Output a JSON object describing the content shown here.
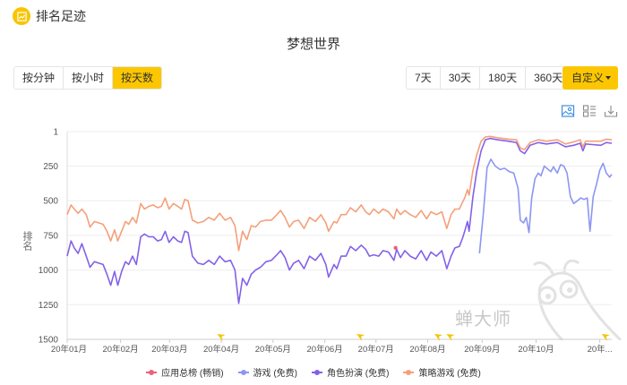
{
  "header": {
    "title": "排名足迹",
    "icon": "chart-badge-icon"
  },
  "chart_title": "梦想世界",
  "granularity": {
    "buttons": [
      {
        "label": "按分钟",
        "active": false
      },
      {
        "label": "按小时",
        "active": false
      },
      {
        "label": "按天数",
        "active": true
      }
    ]
  },
  "range": {
    "buttons": [
      {
        "label": "7天"
      },
      {
        "label": "30天"
      },
      {
        "label": "180天"
      },
      {
        "label": "360天"
      }
    ],
    "custom_label": "自定义"
  },
  "toolbox": [
    "image-icon",
    "list-view-icon",
    "download-icon"
  ],
  "watermark": "蝉大师",
  "chart_data": {
    "type": "line",
    "title": "梦想世界",
    "xlabel": "",
    "ylabel": "排名",
    "y_inverted": true,
    "ylim": [
      1,
      1500
    ],
    "y_ticks": [
      1,
      250,
      500,
      750,
      1000,
      1250,
      1500
    ],
    "x_ticks": [
      "20年01月",
      "20年02月",
      "20年03月",
      "20年04月",
      "20年05月",
      "20年06月",
      "20年07月",
      "20年08月",
      "20年09月",
      "20年10月",
      "20年..."
    ],
    "x_tick_pos": [
      0,
      0.098,
      0.188,
      0.283,
      0.378,
      0.473,
      0.567,
      0.662,
      0.762,
      0.861,
      0.978
    ],
    "grid": true,
    "legend_position": "bottom",
    "event_markers": [
      0.282,
      0.538,
      0.681,
      0.703,
      0.988
    ],
    "series": [
      {
        "name": "应用总榜 (畅销)",
        "color": "#f0607a",
        "points": [
          [
            0.603,
            840
          ]
        ]
      },
      {
        "name": "游戏 (免费)",
        "color": "#8c96f2",
        "points": [
          [
            0.757,
            880
          ],
          [
            0.764,
            600
          ],
          [
            0.771,
            260
          ],
          [
            0.778,
            200
          ],
          [
            0.786,
            250
          ],
          [
            0.795,
            275
          ],
          [
            0.803,
            265
          ],
          [
            0.812,
            290
          ],
          [
            0.82,
            300
          ],
          [
            0.828,
            410
          ],
          [
            0.832,
            640
          ],
          [
            0.838,
            660
          ],
          [
            0.843,
            620
          ],
          [
            0.848,
            730
          ],
          [
            0.853,
            480
          ],
          [
            0.859,
            340
          ],
          [
            0.865,
            300
          ],
          [
            0.87,
            320
          ],
          [
            0.876,
            250
          ],
          [
            0.882,
            270
          ],
          [
            0.888,
            290
          ],
          [
            0.893,
            255
          ],
          [
            0.9,
            300
          ],
          [
            0.906,
            240
          ],
          [
            0.912,
            250
          ],
          [
            0.918,
            300
          ],
          [
            0.924,
            470
          ],
          [
            0.93,
            520
          ],
          [
            0.937,
            500
          ],
          [
            0.943,
            480
          ],
          [
            0.949,
            490
          ],
          [
            0.955,
            480
          ],
          [
            0.96,
            720
          ],
          [
            0.966,
            470
          ],
          [
            0.972,
            380
          ],
          [
            0.978,
            280
          ],
          [
            0.984,
            230
          ],
          [
            0.99,
            300
          ],
          [
            0.996,
            330
          ],
          [
            1.0,
            310
          ]
        ]
      },
      {
        "name": "角色扮演 (免费)",
        "color": "#8461e8",
        "points": [
          [
            0,
            900
          ],
          [
            0.007,
            790
          ],
          [
            0.013,
            840
          ],
          [
            0.02,
            880
          ],
          [
            0.027,
            810
          ],
          [
            0.035,
            900
          ],
          [
            0.042,
            980
          ],
          [
            0.05,
            940
          ],
          [
            0.058,
            950
          ],
          [
            0.066,
            960
          ],
          [
            0.073,
            1030
          ],
          [
            0.08,
            1110
          ],
          [
            0.087,
            1010
          ],
          [
            0.093,
            1110
          ],
          [
            0.1,
            1010
          ],
          [
            0.107,
            940
          ],
          [
            0.113,
            960
          ],
          [
            0.12,
            900
          ],
          [
            0.127,
            960
          ],
          [
            0.135,
            760
          ],
          [
            0.142,
            740
          ],
          [
            0.15,
            760
          ],
          [
            0.158,
            760
          ],
          [
            0.166,
            790
          ],
          [
            0.173,
            780
          ],
          [
            0.18,
            720
          ],
          [
            0.187,
            800
          ],
          [
            0.195,
            760
          ],
          [
            0.203,
            790
          ],
          [
            0.21,
            800
          ],
          [
            0.216,
            720
          ],
          [
            0.222,
            730
          ],
          [
            0.23,
            900
          ],
          [
            0.24,
            950
          ],
          [
            0.25,
            960
          ],
          [
            0.26,
            930
          ],
          [
            0.27,
            960
          ],
          [
            0.28,
            900
          ],
          [
            0.29,
            940
          ],
          [
            0.3,
            930
          ],
          [
            0.308,
            1000
          ],
          [
            0.315,
            1240
          ],
          [
            0.322,
            1060
          ],
          [
            0.33,
            1110
          ],
          [
            0.338,
            1030
          ],
          [
            0.346,
            1000
          ],
          [
            0.355,
            980
          ],
          [
            0.365,
            940
          ],
          [
            0.375,
            930
          ],
          [
            0.385,
            890
          ],
          [
            0.392,
            860
          ],
          [
            0.4,
            910
          ],
          [
            0.408,
            1000
          ],
          [
            0.416,
            950
          ],
          [
            0.425,
            930
          ],
          [
            0.435,
            990
          ],
          [
            0.445,
            900
          ],
          [
            0.456,
            930
          ],
          [
            0.466,
            880
          ],
          [
            0.475,
            960
          ],
          [
            0.48,
            1050
          ],
          [
            0.49,
            960
          ],
          [
            0.495,
            990
          ],
          [
            0.503,
            900
          ],
          [
            0.512,
            900
          ],
          [
            0.52,
            830
          ],
          [
            0.53,
            860
          ],
          [
            0.54,
            820
          ],
          [
            0.548,
            850
          ],
          [
            0.555,
            900
          ],
          [
            0.563,
            890
          ],
          [
            0.572,
            900
          ],
          [
            0.58,
            860
          ],
          [
            0.59,
            870
          ],
          [
            0.6,
            930
          ],
          [
            0.605,
            850
          ],
          [
            0.612,
            910
          ],
          [
            0.62,
            860
          ],
          [
            0.63,
            900
          ],
          [
            0.64,
            920
          ],
          [
            0.65,
            860
          ],
          [
            0.66,
            930
          ],
          [
            0.668,
            870
          ],
          [
            0.678,
            900
          ],
          [
            0.688,
            860
          ],
          [
            0.697,
            990
          ],
          [
            0.705,
            900
          ],
          [
            0.712,
            840
          ],
          [
            0.72,
            830
          ],
          [
            0.726,
            770
          ],
          [
            0.73,
            720
          ],
          [
            0.735,
            650
          ],
          [
            0.738,
            720
          ],
          [
            0.745,
            470
          ],
          [
            0.752,
            290
          ],
          [
            0.76,
            140
          ],
          [
            0.768,
            60
          ],
          [
            0.776,
            50
          ],
          [
            0.79,
            60
          ],
          [
            0.81,
            70
          ],
          [
            0.825,
            80
          ],
          [
            0.832,
            140
          ],
          [
            0.84,
            160
          ],
          [
            0.85,
            100
          ],
          [
            0.865,
            80
          ],
          [
            0.88,
            90
          ],
          [
            0.9,
            80
          ],
          [
            0.915,
            110
          ],
          [
            0.93,
            100
          ],
          [
            0.942,
            85
          ],
          [
            0.947,
            140
          ],
          [
            0.952,
            90
          ],
          [
            0.965,
            95
          ],
          [
            0.98,
            100
          ],
          [
            0.99,
            80
          ],
          [
            1.0,
            85
          ]
        ]
      },
      {
        "name": "策略游戏 (免费)",
        "color": "#f4a07a",
        "points": [
          [
            0,
            600
          ],
          [
            0.007,
            530
          ],
          [
            0.013,
            560
          ],
          [
            0.02,
            590
          ],
          [
            0.027,
            560
          ],
          [
            0.035,
            600
          ],
          [
            0.042,
            690
          ],
          [
            0.05,
            650
          ],
          [
            0.058,
            660
          ],
          [
            0.066,
            670
          ],
          [
            0.073,
            720
          ],
          [
            0.08,
            790
          ],
          [
            0.087,
            710
          ],
          [
            0.093,
            790
          ],
          [
            0.1,
            720
          ],
          [
            0.107,
            650
          ],
          [
            0.113,
            670
          ],
          [
            0.12,
            620
          ],
          [
            0.127,
            660
          ],
          [
            0.135,
            520
          ],
          [
            0.142,
            560
          ],
          [
            0.15,
            540
          ],
          [
            0.158,
            530
          ],
          [
            0.166,
            550
          ],
          [
            0.173,
            540
          ],
          [
            0.18,
            480
          ],
          [
            0.187,
            560
          ],
          [
            0.195,
            520
          ],
          [
            0.203,
            540
          ],
          [
            0.21,
            560
          ],
          [
            0.216,
            490
          ],
          [
            0.222,
            500
          ],
          [
            0.23,
            640
          ],
          [
            0.24,
            660
          ],
          [
            0.25,
            650
          ],
          [
            0.26,
            620
          ],
          [
            0.27,
            640
          ],
          [
            0.28,
            590
          ],
          [
            0.29,
            640
          ],
          [
            0.3,
            620
          ],
          [
            0.308,
            680
          ],
          [
            0.315,
            860
          ],
          [
            0.322,
            720
          ],
          [
            0.33,
            780
          ],
          [
            0.338,
            680
          ],
          [
            0.346,
            690
          ],
          [
            0.355,
            650
          ],
          [
            0.365,
            640
          ],
          [
            0.375,
            640
          ],
          [
            0.385,
            600
          ],
          [
            0.392,
            570
          ],
          [
            0.4,
            620
          ],
          [
            0.408,
            690
          ],
          [
            0.416,
            650
          ],
          [
            0.425,
            640
          ],
          [
            0.435,
            700
          ],
          [
            0.445,
            620
          ],
          [
            0.456,
            650
          ],
          [
            0.466,
            600
          ],
          [
            0.475,
            660
          ],
          [
            0.48,
            720
          ],
          [
            0.49,
            650
          ],
          [
            0.495,
            660
          ],
          [
            0.503,
            600
          ],
          [
            0.512,
            600
          ],
          [
            0.52,
            550
          ],
          [
            0.53,
            580
          ],
          [
            0.54,
            530
          ],
          [
            0.548,
            580
          ],
          [
            0.555,
            600
          ],
          [
            0.563,
            560
          ],
          [
            0.572,
            590
          ],
          [
            0.58,
            560
          ],
          [
            0.59,
            580
          ],
          [
            0.6,
            630
          ],
          [
            0.605,
            560
          ],
          [
            0.612,
            600
          ],
          [
            0.62,
            570
          ],
          [
            0.63,
            600
          ],
          [
            0.64,
            620
          ],
          [
            0.65,
            570
          ],
          [
            0.66,
            630
          ],
          [
            0.668,
            580
          ],
          [
            0.678,
            600
          ],
          [
            0.688,
            580
          ],
          [
            0.697,
            700
          ],
          [
            0.705,
            600
          ],
          [
            0.712,
            560
          ],
          [
            0.72,
            560
          ],
          [
            0.726,
            510
          ],
          [
            0.73,
            480
          ],
          [
            0.735,
            420
          ],
          [
            0.738,
            460
          ],
          [
            0.745,
            280
          ],
          [
            0.752,
            170
          ],
          [
            0.76,
            70
          ],
          [
            0.768,
            40
          ],
          [
            0.776,
            35
          ],
          [
            0.79,
            45
          ],
          [
            0.81,
            55
          ],
          [
            0.825,
            60
          ],
          [
            0.832,
            120
          ],
          [
            0.84,
            130
          ],
          [
            0.85,
            80
          ],
          [
            0.865,
            60
          ],
          [
            0.88,
            70
          ],
          [
            0.9,
            60
          ],
          [
            0.915,
            90
          ],
          [
            0.93,
            75
          ],
          [
            0.942,
            60
          ],
          [
            0.947,
            110
          ],
          [
            0.952,
            70
          ],
          [
            0.965,
            70
          ],
          [
            0.98,
            70
          ],
          [
            0.99,
            55
          ],
          [
            1.0,
            60
          ]
        ]
      }
    ]
  }
}
